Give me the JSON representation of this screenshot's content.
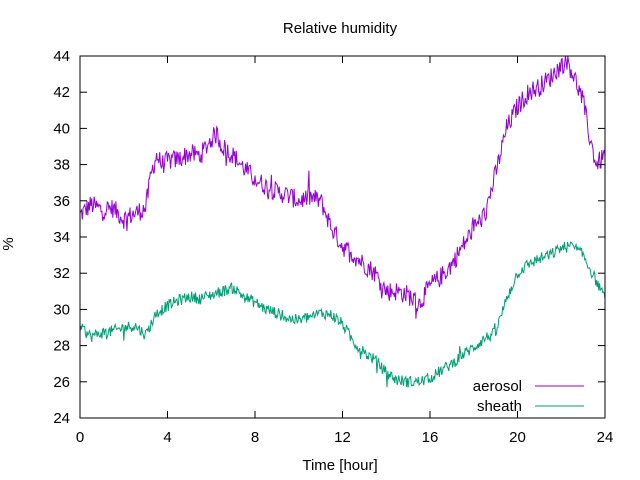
{
  "chart_data": {
    "type": "line",
    "title": "Relative humidity",
    "xlabel": "Time [hour]",
    "ylabel": "%",
    "xlim": [
      0,
      24
    ],
    "ylim": [
      24,
      44
    ],
    "xticks": [
      0,
      4,
      8,
      12,
      16,
      20,
      24
    ],
    "yticks": [
      24,
      26,
      28,
      30,
      32,
      34,
      36,
      38,
      40,
      42,
      44
    ],
    "grid": false,
    "legend_position": "bottom-right",
    "series": [
      {
        "name": "aerosol",
        "color": "#9400d3",
        "x": [
          0,
          0.5,
          1,
          1.5,
          2,
          2.5,
          3,
          3.25,
          3.5,
          3.75,
          4,
          4.5,
          5,
          5.5,
          6,
          6.25,
          6.5,
          7,
          7.5,
          8,
          8.5,
          9,
          9.5,
          10,
          10.5,
          11,
          11.5,
          12,
          12.5,
          13,
          13.5,
          14,
          14.5,
          15,
          15.5,
          16,
          16.5,
          17,
          17.5,
          18,
          18.5,
          19,
          19.5,
          20,
          20.5,
          21,
          21.5,
          22,
          22.3,
          22.6,
          23,
          23.3,
          23.6,
          24
        ],
        "y": [
          35.2,
          35.8,
          35.5,
          35.6,
          35.0,
          35.3,
          35.6,
          37.5,
          38.5,
          38.0,
          38.2,
          38.3,
          38.6,
          38.5,
          39.4,
          39.7,
          39.0,
          38.5,
          37.8,
          37.2,
          36.8,
          36.5,
          36.3,
          36.0,
          36.2,
          36.0,
          34.5,
          33.5,
          33.0,
          32.5,
          32.0,
          31.0,
          31.0,
          30.8,
          30.3,
          31.3,
          31.8,
          32.5,
          33.5,
          34.5,
          35.2,
          37.5,
          40.0,
          41.2,
          42.0,
          42.3,
          42.8,
          43.5,
          43.8,
          42.8,
          41.5,
          39.5,
          38.0,
          38.5
        ]
      },
      {
        "name": "sheath",
        "color": "#009e73",
        "x": [
          0,
          0.5,
          1,
          1.5,
          2,
          2.5,
          3,
          3.5,
          4,
          4.5,
          5,
          5.5,
          6,
          6.5,
          7,
          7.5,
          8,
          8.5,
          9,
          9.5,
          10,
          10.5,
          11,
          11.5,
          12,
          12.5,
          13,
          13.5,
          14,
          14.5,
          15,
          15.5,
          16,
          16.5,
          17,
          17.5,
          18,
          18.5,
          19,
          19.5,
          20,
          20.5,
          21,
          21.5,
          22,
          22.5,
          23,
          23.5,
          24
        ],
        "y": [
          29.0,
          28.5,
          28.7,
          28.8,
          29.0,
          29.1,
          28.6,
          29.8,
          30.2,
          30.5,
          30.7,
          30.6,
          30.8,
          31.0,
          31.2,
          30.7,
          30.4,
          30.0,
          29.8,
          29.5,
          29.4,
          29.6,
          29.8,
          29.7,
          29.2,
          28.2,
          27.6,
          27.2,
          26.5,
          26.1,
          26.0,
          26.0,
          26.2,
          26.6,
          27.0,
          27.5,
          27.9,
          28.4,
          28.7,
          30.6,
          32.0,
          32.5,
          32.8,
          33.0,
          33.4,
          33.5,
          33.0,
          31.8,
          30.6
        ]
      }
    ]
  }
}
